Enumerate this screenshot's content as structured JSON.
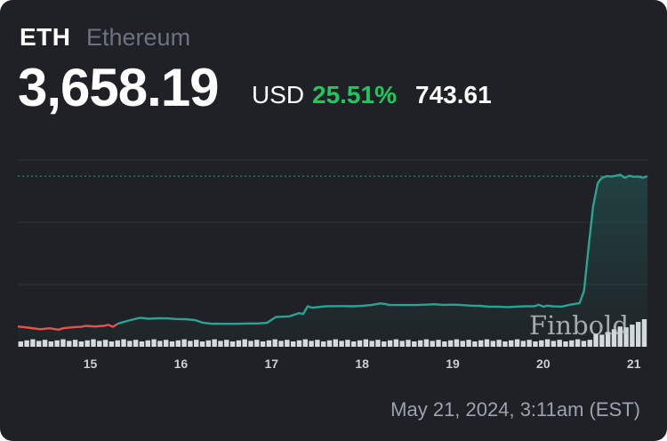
{
  "header": {
    "symbol": "ETH",
    "name": "Ethereum",
    "price": "3,658.19",
    "currency": "USD",
    "change_percent": "25.51%",
    "change_value": "743.61"
  },
  "watermark": "Finbold",
  "timestamp": "May 21, 2024, 3:11am (EST)",
  "colors": {
    "background": "#1f2126",
    "up_line": "#2aa393",
    "down_line": "#e5534b",
    "positive_text": "#22c55e",
    "volume_bars": "#d9dbe0"
  },
  "chart_data": {
    "type": "line",
    "x_tick_labels": [
      "15",
      "16",
      "17",
      "18",
      "19",
      "20",
      "21"
    ],
    "xlim": [
      14.2,
      21.15
    ],
    "ylim": [
      2820,
      3760
    ],
    "grid": true,
    "reference_line": 3658.19,
    "series": [
      {
        "x": [
          14.2,
          14.3,
          14.35,
          14.45,
          14.55,
          14.65,
          14.7,
          14.8,
          14.9,
          14.95,
          15.05,
          15.15,
          15.2,
          15.25,
          15.3,
          15.35,
          15.45,
          15.55,
          15.65,
          15.75,
          15.85,
          15.95,
          16.05,
          16.15,
          16.25,
          16.35,
          16.4,
          16.45,
          16.6,
          16.75,
          16.85,
          16.95,
          17.05,
          17.1,
          17.2,
          17.3,
          17.35,
          17.4,
          17.45,
          17.6,
          17.8,
          17.9,
          18.0,
          18.1,
          18.2,
          18.25,
          18.3,
          18.4,
          18.5,
          18.6,
          18.7,
          18.8,
          18.9,
          19.0,
          19.1,
          19.2,
          19.3,
          19.4,
          19.5,
          19.6,
          19.7,
          19.8,
          19.9,
          19.95,
          20.0,
          20.05,
          20.1,
          20.2,
          20.3,
          20.4,
          20.45,
          20.5,
          20.55,
          20.6,
          20.62,
          20.65,
          20.7,
          20.75,
          20.8,
          20.85,
          20.9,
          20.95,
          21.0,
          21.05,
          21.1,
          21.15
        ],
        "values": [
          2912,
          2907,
          2904,
          2898,
          2903,
          2896,
          2903,
          2908,
          2910,
          2915,
          2912,
          2915,
          2920,
          2910,
          2925,
          2932,
          2944,
          2955,
          2950,
          2953,
          2952,
          2949,
          2948,
          2944,
          2930,
          2925,
          2926,
          2925,
          2925,
          2927,
          2927,
          2930,
          2959,
          2960,
          2962,
          2978,
          2974,
          3012,
          3005,
          3012,
          3013,
          3012,
          3014,
          3018,
          3026,
          3024,
          3019,
          3018,
          3018,
          3018,
          3020,
          3022,
          3019,
          3020,
          3018,
          3015,
          3014,
          3010,
          3010,
          3008,
          3010,
          3012,
          3012,
          3020,
          3010,
          3015,
          3012,
          3010,
          3020,
          3028,
          3088,
          3305,
          3508,
          3620,
          3636,
          3650,
          3658,
          3656,
          3660,
          3665,
          3650,
          3660,
          3655,
          3656,
          3650,
          3658
        ],
        "down_until_x": 15.3
      }
    ],
    "volume_bars": 104
  }
}
